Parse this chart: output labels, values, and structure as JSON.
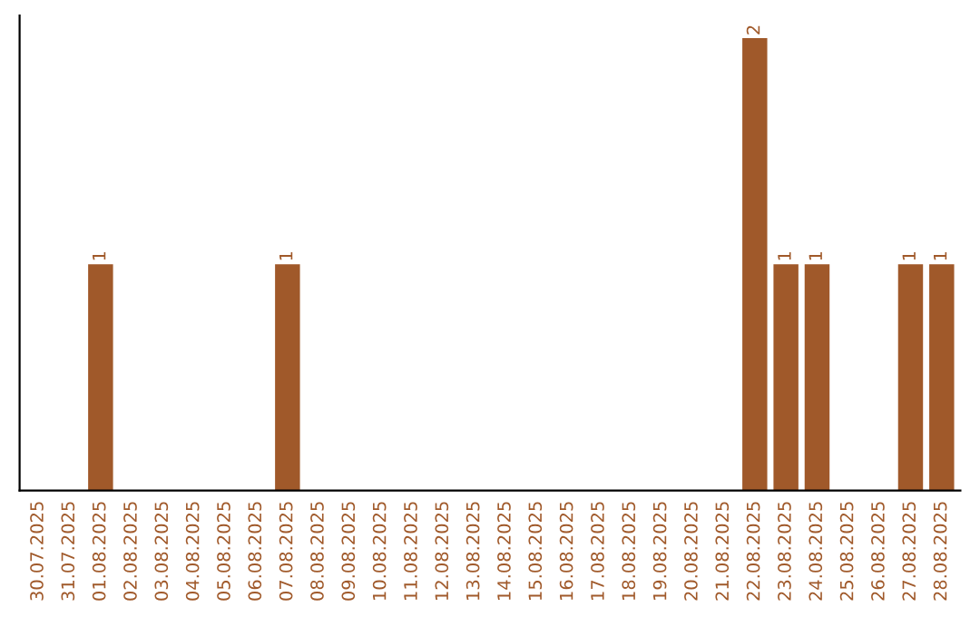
{
  "chart_data": {
    "type": "bar",
    "categories": [
      "30.07.2025",
      "31.07.2025",
      "01.08.2025",
      "02.08.2025",
      "03.08.2025",
      "04.08.2025",
      "05.08.2025",
      "06.08.2025",
      "07.08.2025",
      "08.08.2025",
      "09.08.2025",
      "10.08.2025",
      "11.08.2025",
      "12.08.2025",
      "13.08.2025",
      "14.08.2025",
      "15.08.2025",
      "16.08.2025",
      "17.08.2025",
      "18.08.2025",
      "19.08.2025",
      "20.08.2025",
      "21.08.2025",
      "22.08.2025",
      "23.08.2025",
      "24.08.2025",
      "25.08.2025",
      "26.08.2025",
      "27.08.2025",
      "28.08.2025"
    ],
    "values": [
      0,
      0,
      1,
      0,
      0,
      0,
      0,
      0,
      1,
      0,
      0,
      0,
      0,
      0,
      0,
      0,
      0,
      0,
      0,
      0,
      0,
      0,
      0,
      2,
      1,
      1,
      0,
      0,
      1,
      1
    ],
    "value_labels": [
      null,
      null,
      "1",
      null,
      null,
      null,
      null,
      null,
      "1",
      null,
      null,
      null,
      null,
      null,
      null,
      null,
      null,
      null,
      null,
      null,
      null,
      null,
      null,
      "2",
      "1",
      "1",
      null,
      null,
      "1",
      "1"
    ],
    "color": "#a0592a",
    "ylim": [
      0,
      2.1
    ],
    "tick_labels": "x",
    "grid": false,
    "legend": false
  }
}
